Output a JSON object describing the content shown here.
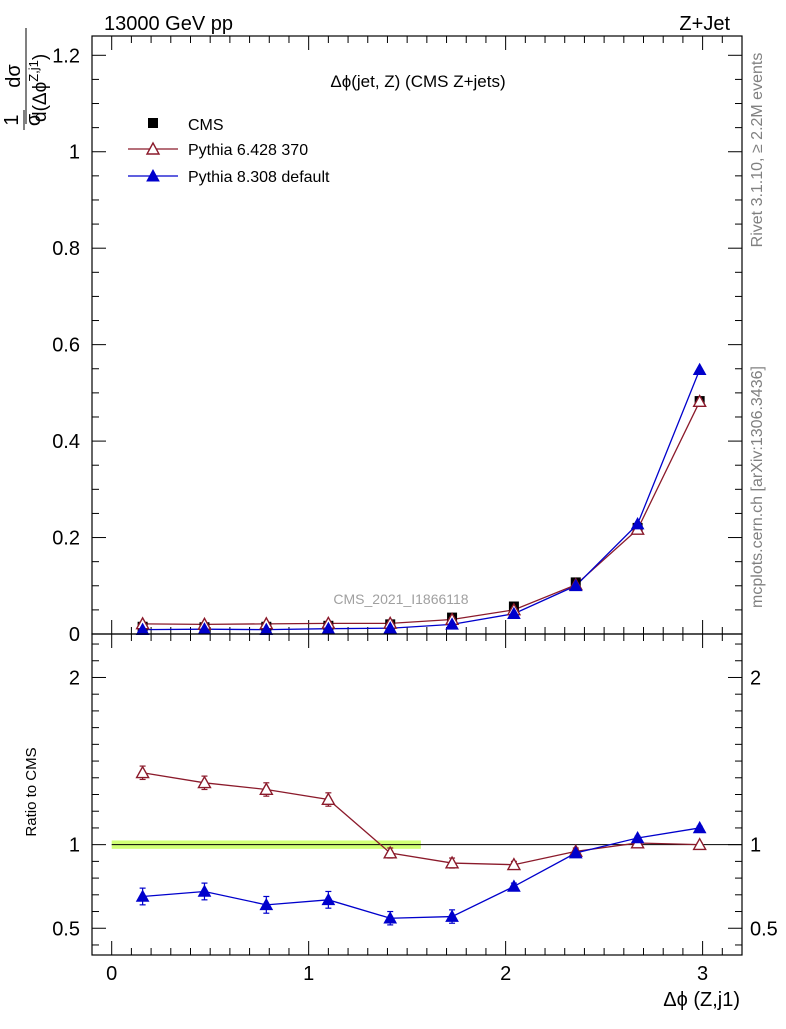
{
  "header": {
    "left": "13000 GeV pp",
    "right": "Z+Jet"
  },
  "side_labels": {
    "rivet": "Rivet 3.1.10, ≥ 2.2M events",
    "mcplots": "mcplots.cern.ch [arXiv:1306.3436]"
  },
  "chart_data": [
    {
      "type": "scatter",
      "title": "Δϕ(jet, Z) (CMS Z+jets)",
      "watermark": "CMS_2021_I1866118",
      "ylabel_num": "dσ",
      "ylabel_den": "d(Δϕ",
      "ylabel_sup": "Z,j1",
      "ylabel_close": ")",
      "ylabel_prefix_num": "1",
      "ylabel_prefix_den": "σ",
      "xlabel": "",
      "xlim": [
        -0.1,
        3.2
      ],
      "ylim": [
        0,
        1.24
      ],
      "yticks": [
        0,
        0.2,
        0.4,
        0.6,
        0.8,
        1,
        1.2
      ],
      "ytick_labels": [
        "0",
        "0.2",
        "0.4",
        "0.6",
        "0.8",
        "1",
        "1.2"
      ],
      "legend_position": "top-left",
      "series": [
        {
          "name": "CMS",
          "color": "#000000",
          "marker": "square",
          "x": [
            0.157,
            0.471,
            0.785,
            1.1,
            1.414,
            1.728,
            2.042,
            2.356,
            2.67,
            2.985
          ],
          "y": [
            0.015,
            0.014,
            0.015,
            0.017,
            0.02,
            0.034,
            0.057,
            0.107,
            0.22,
            0.483
          ]
        },
        {
          "name": "Pythia 6.428 370",
          "color": "#8b1a2b",
          "marker": "open-triangle",
          "x": [
            0.157,
            0.471,
            0.785,
            1.1,
            1.414,
            1.728,
            2.042,
            2.356,
            2.67,
            2.985
          ],
          "y": [
            0.021,
            0.02,
            0.021,
            0.022,
            0.022,
            0.03,
            0.05,
            0.102,
            0.217,
            0.482
          ]
        },
        {
          "name": "Pythia 8.308 default",
          "color": "#0000cc",
          "marker": "triangle",
          "x": [
            0.157,
            0.471,
            0.785,
            1.1,
            1.414,
            1.728,
            2.042,
            2.356,
            2.67,
            2.985
          ],
          "y": [
            0.009,
            0.01,
            0.009,
            0.011,
            0.012,
            0.02,
            0.042,
            0.1,
            0.228,
            0.548
          ]
        }
      ]
    },
    {
      "type": "line",
      "ylabel": "Ratio to CMS",
      "xlabel": "Δϕ (Z,j1)",
      "xlim": [
        -0.1,
        3.2
      ],
      "ylim": [
        0.34,
        2.26
      ],
      "xticks": [
        0,
        1,
        2,
        3
      ],
      "xtick_labels": [
        "0",
        "1",
        "2",
        "3"
      ],
      "yticks": [
        0.5,
        1,
        2
      ],
      "ytick_labels": [
        "0.5",
        "1",
        "2"
      ],
      "band": {
        "x_start": 0.0,
        "x_end": 1.57,
        "low": 0.975,
        "high": 1.025,
        "color": "#ccff66"
      },
      "series": [
        {
          "name": "Pythia 6.428 370",
          "color": "#8b1a2b",
          "marker": "open-triangle",
          "x": [
            0.157,
            0.471,
            0.785,
            1.1,
            1.414,
            1.728,
            2.042,
            2.356,
            2.67,
            2.985
          ],
          "y": [
            1.43,
            1.37,
            1.33,
            1.27,
            0.95,
            0.89,
            0.88,
            0.96,
            1.01,
            1.0
          ],
          "err": [
            0.04,
            0.04,
            0.04,
            0.04,
            0.03,
            0.03,
            0.02,
            0.02,
            0.01,
            0.01
          ]
        },
        {
          "name": "Pythia 8.308 default",
          "color": "#0000cc",
          "marker": "triangle",
          "x": [
            0.157,
            0.471,
            0.785,
            1.1,
            1.414,
            1.728,
            2.042,
            2.356,
            2.67,
            2.985
          ],
          "y": [
            0.69,
            0.72,
            0.64,
            0.67,
            0.56,
            0.57,
            0.75,
            0.95,
            1.04,
            1.1
          ],
          "err": [
            0.05,
            0.05,
            0.05,
            0.05,
            0.04,
            0.04,
            0.02,
            0.01,
            0.01,
            0.01
          ]
        }
      ]
    }
  ]
}
